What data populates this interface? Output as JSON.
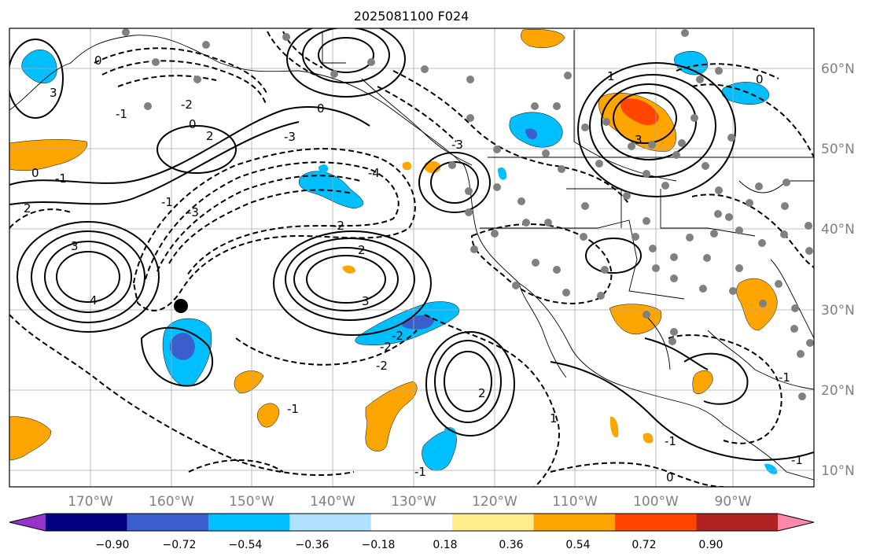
{
  "title": "2025081100 F024",
  "lon_labels": [
    "170°W",
    "160°W",
    "150°W",
    "140°W",
    "130°W",
    "120°W",
    "110°W",
    "100°W",
    "90°W"
  ],
  "lat_labels": [
    "60°N",
    "50°N",
    "40°N",
    "30°N",
    "20°N",
    "10°N"
  ],
  "colorbar": {
    "colors": [
      "#9932cc",
      "#000080",
      "#3a5fcd",
      "#00bfff",
      "#b0e2ff",
      "#ffffff",
      "#ffec8b",
      "#ffa500",
      "#ff4500",
      "#b22222",
      "#ff88aa"
    ],
    "labels": [
      "−0.90",
      "−0.72",
      "−0.54",
      "−0.36",
      "−0.18",
      "0.18",
      "0.36",
      "0.54",
      "0.72",
      "0.90"
    ]
  },
  "contour_labels": [
    "3",
    "0",
    "-1",
    "0",
    "2",
    "-1",
    "-2",
    "3",
    "2",
    "0",
    "-3",
    "-4",
    "-2",
    "0",
    "2",
    "3",
    "4",
    "-1",
    "-2",
    "-3",
    "-1",
    "-2",
    "-2",
    "3",
    "0",
    "-3",
    "-1",
    "2",
    "1",
    "-1",
    "0",
    "-1",
    "-1",
    "1"
  ]
}
